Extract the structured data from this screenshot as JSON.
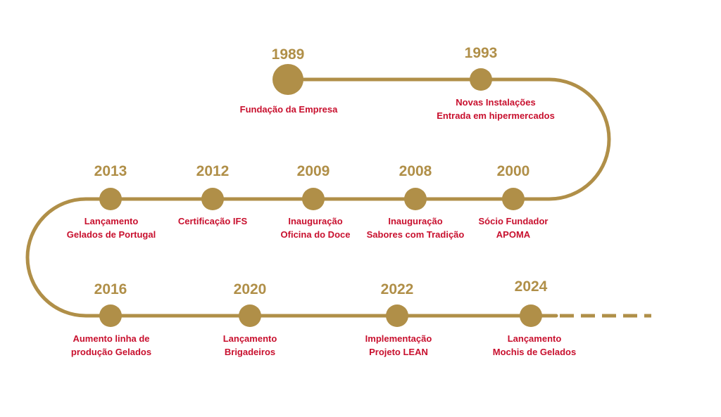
{
  "colors": {
    "gold": "#b08f48",
    "red": "#c8102e"
  },
  "milestones": [
    {
      "year": "1989",
      "lines": [
        "Fundação da Empresa"
      ]
    },
    {
      "year": "1993",
      "lines": [
        "Novas Instalações",
        "Entrada em hipermercados"
      ]
    },
    {
      "year": "2000",
      "lines": [
        "Sócio Fundador",
        "APOMA"
      ]
    },
    {
      "year": "2008",
      "lines": [
        "Inauguração",
        "Sabores com Tradição"
      ]
    },
    {
      "year": "2009",
      "lines": [
        "Inauguração",
        "Oficina do Doce"
      ]
    },
    {
      "year": "2012",
      "lines": [
        "Certificação IFS"
      ]
    },
    {
      "year": "2013",
      "lines": [
        "Lançamento",
        "Gelados de Portugal"
      ]
    },
    {
      "year": "2016",
      "lines": [
        "Aumento linha de",
        "produção Gelados"
      ]
    },
    {
      "year": "2020",
      "lines": [
        "Lançamento",
        "Brigadeiros"
      ]
    },
    {
      "year": "2022",
      "lines": [
        "Implementação",
        "Projeto LEAN"
      ]
    },
    {
      "year": "2024",
      "lines": [
        "Lançamento",
        "Mochis de Gelados"
      ]
    }
  ]
}
